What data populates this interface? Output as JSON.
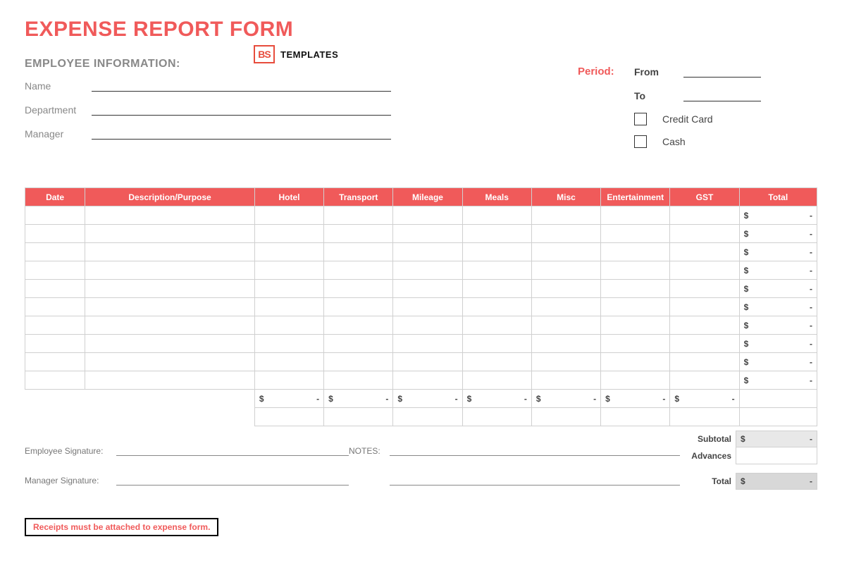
{
  "title": "EXPENSE REPORT FORM",
  "logo": {
    "mark": "BS",
    "text": "TEMPLATES"
  },
  "employee_section": {
    "heading": "EMPLOYEE INFORMATION:",
    "fields": {
      "name_label": "Name",
      "department_label": "Department",
      "manager_label": "Manager"
    }
  },
  "period_section": {
    "period_label": "Period:",
    "from_label": "From",
    "to_label": "To",
    "credit_card_label": "Credit Card",
    "cash_label": "Cash"
  },
  "table": {
    "columns": [
      "Date",
      "Description/Purpose",
      "Hotel",
      "Transport",
      "Mileage",
      "Meals",
      "Misc",
      "Entertainment",
      "GST",
      "Total"
    ],
    "widths_class": [
      "col-date",
      "col-desc",
      "col-num",
      "col-num",
      "col-num",
      "col-num",
      "col-num",
      "col-num",
      "col-num",
      "col-total"
    ],
    "row_count": 10,
    "currency_symbol": "$",
    "dash": "-",
    "header_bg": "#f05a5a",
    "header_fg": "#ffffff",
    "grid_color": "#d0d0d0"
  },
  "summary": {
    "subtotal_label": "Subtotal",
    "advances_label": "Advances",
    "total_label": "Total",
    "currency_symbol": "$",
    "dash": "-"
  },
  "signatures": {
    "employee_label": "Employee Signature:",
    "manager_label": "Manager Signature:",
    "notes_label": "NOTES:"
  },
  "receipt_note": "Receipts must be attached to expense form."
}
